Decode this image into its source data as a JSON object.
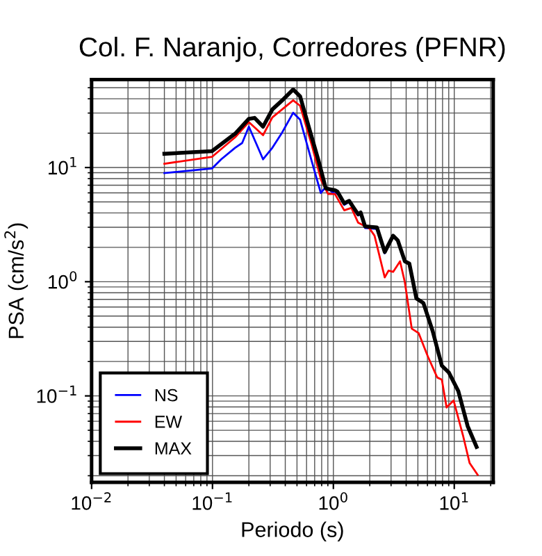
{
  "chart_data": {
    "type": "line",
    "title": "Col. F. Naranjo, Corredores (PFNR)",
    "xlabel": "Periodo (s)",
    "ylabel": "PSA (cm/s$^{2}$)",
    "log": "xy",
    "grid": true,
    "legend": "bottom left",
    "marker": "none",
    "line_style": "solid",
    "xlim": [
      0.01,
      21
    ],
    "ylim": [
      0.0175,
      59
    ],
    "xticks": [
      {
        "value": 0.01,
        "label": "10$^{−2}$"
      },
      {
        "value": 0.1,
        "label": "10$^{−1}$"
      },
      {
        "value": 1,
        "label": "10$^{0}$"
      },
      {
        "value": 10,
        "label": "10$^{1}$"
      }
    ],
    "yticks": [
      {
        "value": 0.1,
        "label": "10$^{−1}$"
      },
      {
        "value": 1,
        "label": "10$^{0}$"
      },
      {
        "value": 10,
        "label": "10$^{1}$"
      }
    ],
    "series": [
      {
        "name": "NS",
        "color": "#0000ff",
        "x": [
          0.04,
          0.099,
          0.118,
          0.154,
          0.176,
          0.2,
          0.229,
          0.262,
          0.313,
          0.372,
          0.465,
          0.531,
          0.663,
          0.787,
          0.865,
          1.03,
          1.08,
          1.23,
          1.35,
          1.6,
          1.68,
          1.83,
          2.29,
          2.66
        ],
        "values": [
          8.94,
          9.8,
          11.8,
          14.9,
          16.4,
          22.8,
          16.4,
          11.8,
          14.9,
          19.8,
          30.2,
          26.2,
          11.3,
          5.98,
          6.75,
          5.86,
          6.0,
          4.7,
          5.0,
          3.8,
          3.9,
          2.95,
          2.9,
          1.78
        ]
      },
      {
        "name": "EW",
        "color": "#ff0000",
        "x": [
          0.04,
          0.099,
          0.154,
          0.2,
          0.262,
          0.313,
          0.465,
          0.531,
          0.663,
          0.792,
          0.904,
          1.03,
          1.23,
          1.41,
          1.6,
          2.0,
          2.19,
          2.66,
          2.86,
          3.12,
          3.56,
          3.9,
          4.45,
          5.08,
          6.05,
          7.23,
          7.89,
          8.64,
          9.87,
          11.8,
          13.4,
          15.6
        ],
        "values": [
          10.8,
          12.4,
          18.4,
          25.0,
          19.2,
          27.5,
          38.8,
          34.7,
          15.7,
          7.77,
          5.86,
          5.86,
          4.22,
          4.43,
          3.3,
          2.91,
          2.53,
          1.09,
          1.25,
          1.22,
          1.51,
          0.99,
          0.388,
          0.354,
          0.221,
          0.145,
          0.139,
          0.0792,
          0.0912,
          0.0452,
          0.0258,
          0.0204
        ]
      },
      {
        "name": "MAX",
        "color": "#000000",
        "x": [
          0.04,
          0.099,
          0.154,
          0.2,
          0.223,
          0.262,
          0.313,
          0.372,
          0.465,
          0.531,
          0.633,
          0.757,
          0.865,
          1.03,
          1.08,
          1.23,
          1.35,
          1.6,
          1.68,
          1.83,
          2.29,
          2.66,
          3.12,
          3.41,
          3.9,
          4.25,
          4.86,
          5.55,
          6.62,
          7.89,
          9.02,
          10.8,
          12.9,
          15.3
        ],
        "values": [
          13.2,
          13.9,
          19.8,
          26.7,
          27.2,
          22.8,
          32.3,
          38.2,
          48.2,
          41.9,
          21.8,
          11.3,
          6.56,
          6.33,
          6.15,
          4.86,
          5.1,
          3.9,
          4.04,
          3.05,
          2.99,
          1.82,
          2.53,
          2.3,
          1.51,
          1.44,
          0.714,
          0.651,
          0.371,
          0.184,
          0.16,
          0.11,
          0.0544,
          0.0357
        ]
      }
    ]
  }
}
